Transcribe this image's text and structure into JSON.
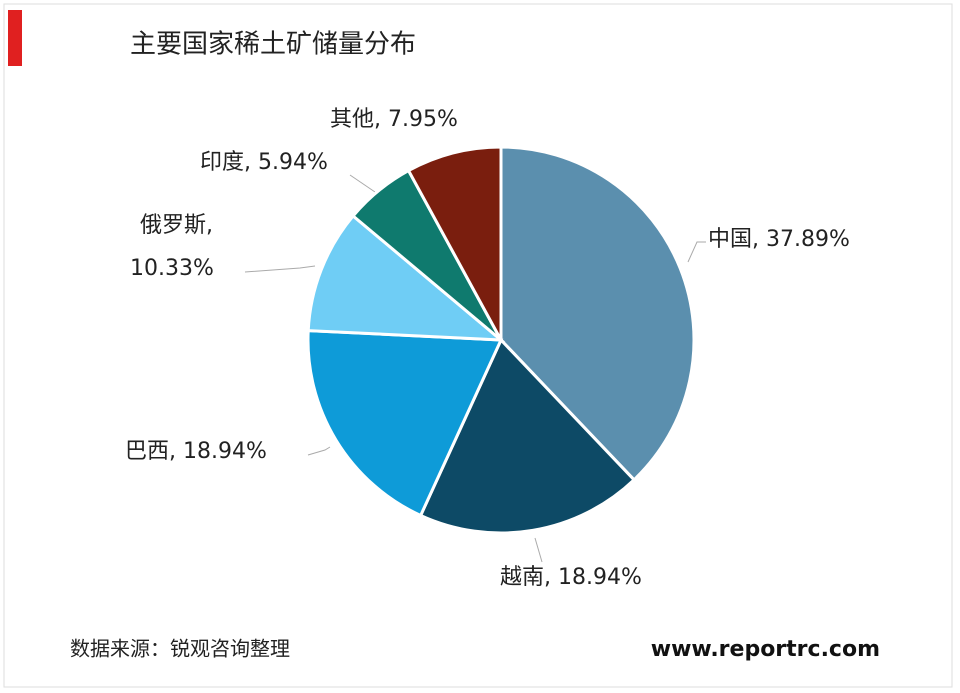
{
  "chart_data": {
    "type": "pie",
    "title": "主要国家稀土矿储量分布",
    "values": [
      37.89,
      18.94,
      18.94,
      10.33,
      5.94,
      7.95
    ],
    "value_labels": [
      "中国, 37.89%",
      "越南, 18.94%",
      "巴西, 18.94%",
      "俄罗斯, 10.33%",
      "印度, 5.94%",
      "其他, 7.95%"
    ],
    "colors": [
      "#5b8fae",
      "#0d4a66",
      "#0e9bd8",
      "#6fcdf5",
      "#0f7a6e",
      "#7a1e0e"
    ],
    "source": "数据来源：锐观咨询整理",
    "website": "www.reportrc.com"
  }
}
